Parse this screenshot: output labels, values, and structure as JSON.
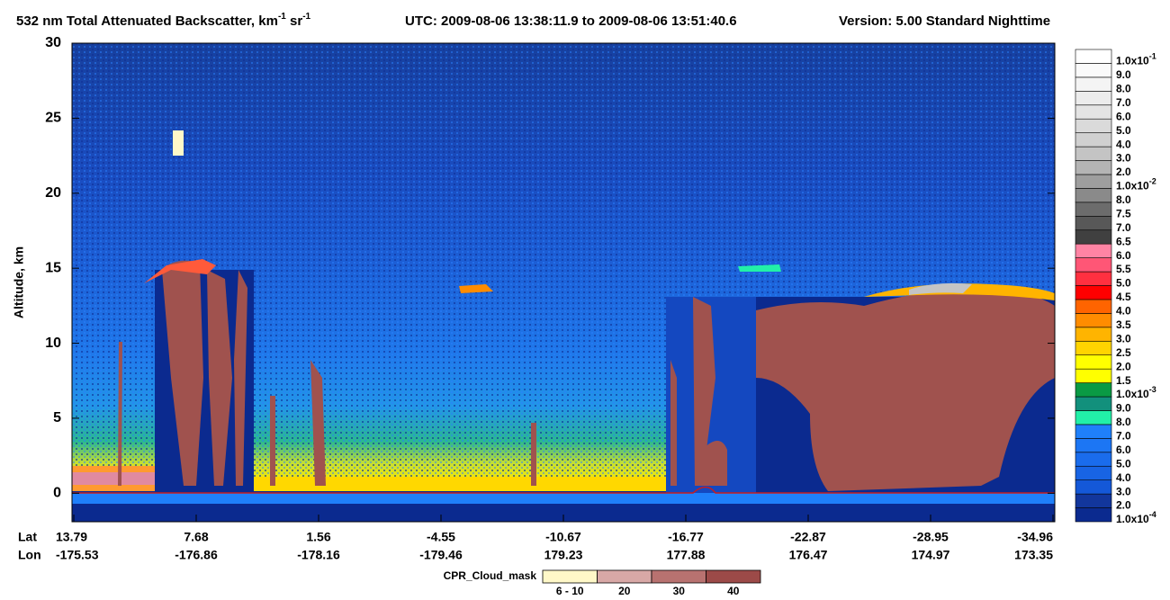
{
  "chart_data": {
    "type": "curtain",
    "title": {
      "main": "532 nm Total Attenuated Backscatter, km",
      "sup1": "-1",
      "mid": " sr",
      "sup2": "-1"
    },
    "time_range": "UTC:  2009-08-06 13:38:11.9  to  2009-08-06 13:51:40.6",
    "version": "Version: 5.00  Standard  Nighttime",
    "y_label": "Altitude, km",
    "ylim": [
      -1.9,
      30
    ],
    "yticks": [
      0,
      5,
      10,
      15,
      20,
      25,
      30
    ],
    "x_row_labels": [
      "Lat",
      "Lon"
    ],
    "xticks": [
      {
        "lat": "13.79",
        "lon": "-175.53"
      },
      {
        "lat": "7.68",
        "lon": "-176.86"
      },
      {
        "lat": "1.56",
        "lon": "-178.16"
      },
      {
        "lat": "-4.55",
        "lon": "-179.46"
      },
      {
        "lat": "-10.67",
        "lon": "179.23"
      },
      {
        "lat": "-16.77",
        "lon": "177.88"
      },
      {
        "lat": "-22.87",
        "lon": "176.47"
      },
      {
        "lat": "-28.95",
        "lon": "174.97"
      },
      {
        "lat": "-34.96",
        "lon": "173.35"
      }
    ],
    "colorbar": {
      "labels": [
        {
          "base": "1.0x10",
          "exp": "-4"
        },
        "2.0",
        "3.0",
        "4.0",
        "5.0",
        "6.0",
        "7.0",
        "8.0",
        "9.0",
        {
          "base": "1.0x10",
          "exp": "-3"
        },
        "1.5",
        "2.0",
        "2.5",
        "3.0",
        "3.5",
        "4.0",
        "4.5",
        "5.0",
        "5.5",
        "6.0",
        "6.5",
        "7.0",
        "7.5",
        "8.0",
        {
          "base": "1.0x10",
          "exp": "-2"
        },
        "2.0",
        "3.0",
        "4.0",
        "5.0",
        "6.0",
        "7.0",
        "8.0",
        "9.0",
        {
          "base": "1.0x10",
          "exp": "-1"
        }
      ],
      "colors": [
        "#0b2a8f",
        "#12369c",
        "#1458d8",
        "#1864e4",
        "#1a6cec",
        "#1c76f4",
        "#1f80fa",
        "#22f0a8",
        "#12907c",
        "#0a9a44",
        "#ffff00",
        "#ffff00",
        "#ffd400",
        "#ffb400",
        "#ff8c00",
        "#ff6400",
        "#ff0000",
        "#ff3040",
        "#ff5676",
        "#ff84a4",
        "#404040",
        "#585858",
        "#6c6c6c",
        "#8a8a8a",
        "#9e9e9e",
        "#b4b4b4",
        "#c4c4c4",
        "#d0d0d0",
        "#dadada",
        "#e4e4e4",
        "#ececec",
        "#f4f4f4",
        "#fafafa",
        "#ffffff"
      ]
    },
    "cloud_mask": {
      "label": "CPR_Cloud_mask",
      "entries": [
        "6 - 10",
        "20",
        "30",
        "40"
      ],
      "colors": [
        "#fff8c8",
        "#d8a8a6",
        "#b87270",
        "#9c4a48"
      ]
    }
  }
}
